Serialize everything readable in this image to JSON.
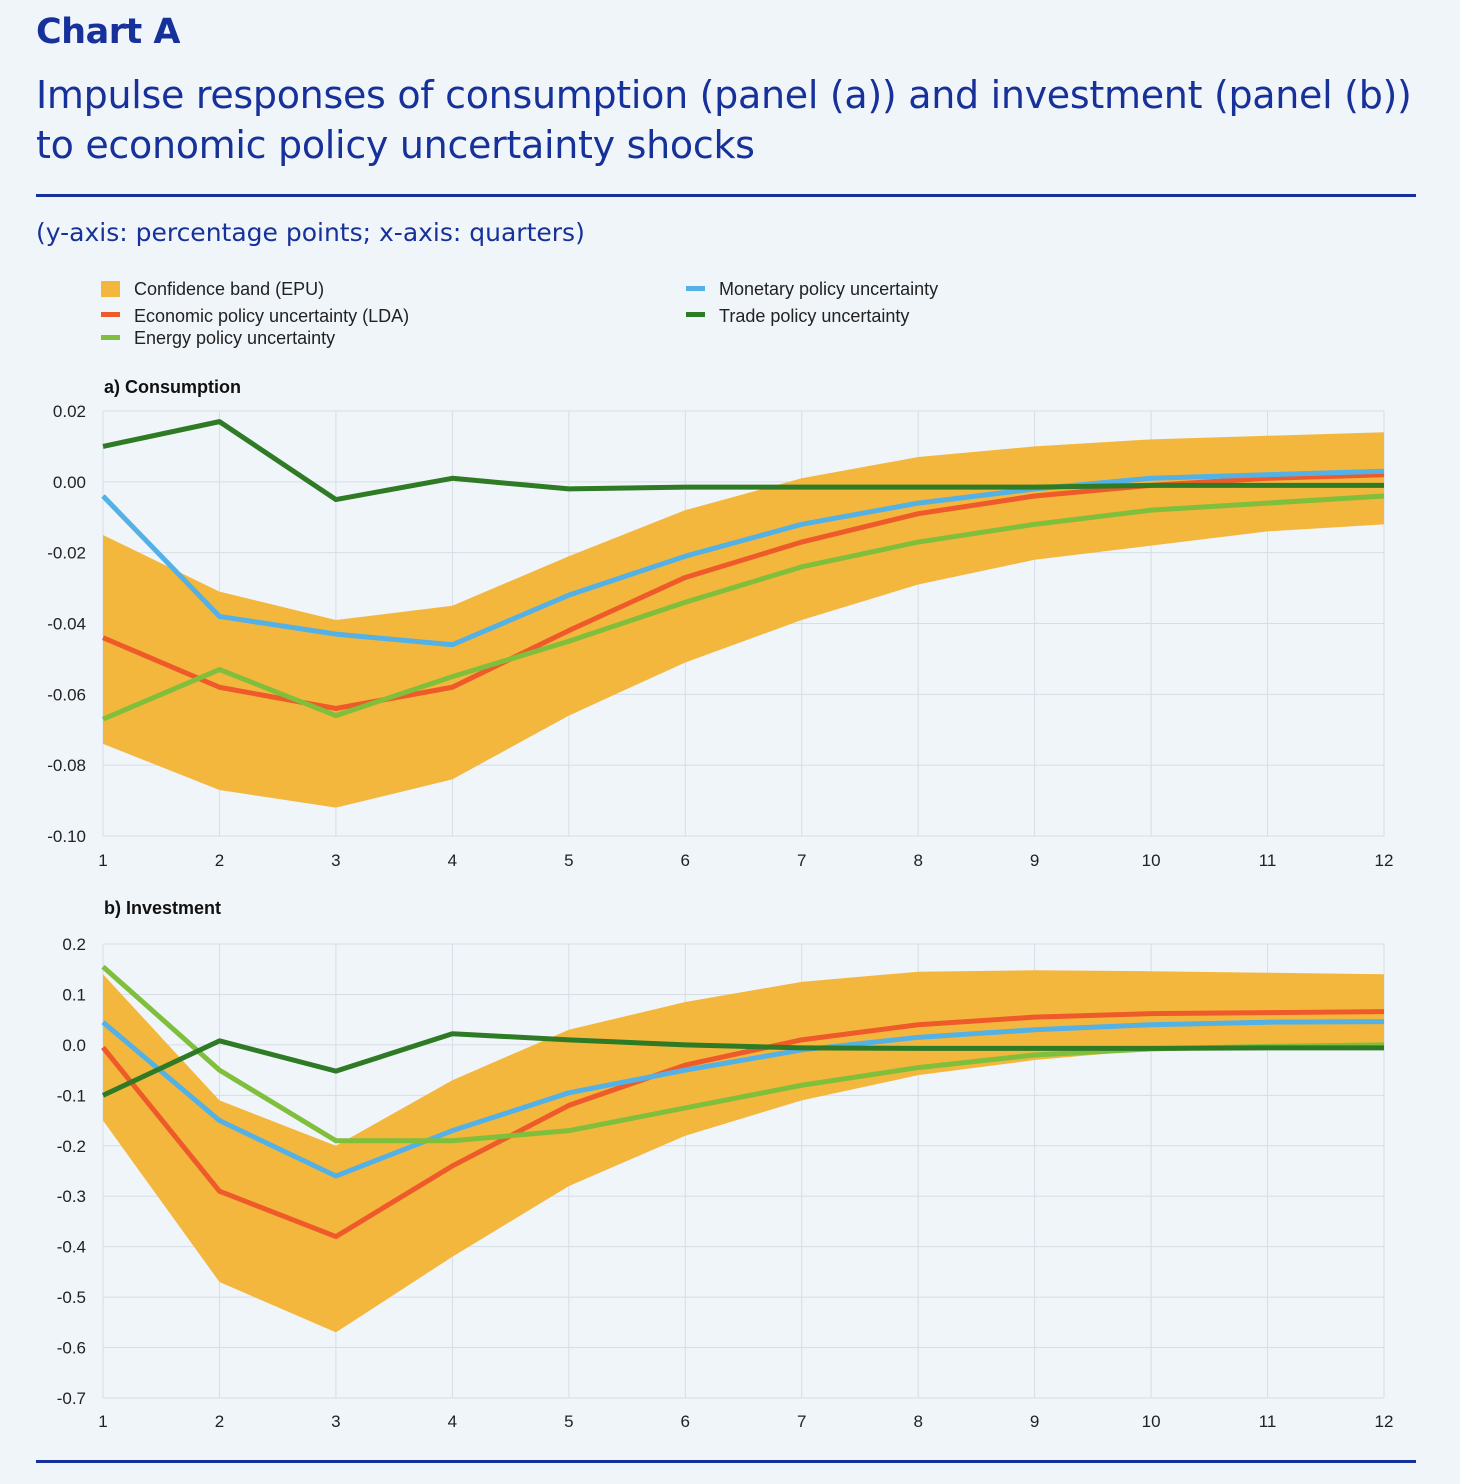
{
  "header": {
    "chart_label": "Chart A",
    "title_line1": "Impulse responses of consumption (panel (a)) and investment (panel (b))",
    "title_line2": "to economic policy uncertainty shocks",
    "axis_note": "(y-axis: percentage points; x-axis: quarters)"
  },
  "colors": {
    "title": "#17319a",
    "band": "#f4b73e",
    "epu": "#ee5a2a",
    "monetary": "#53b1e6",
    "energy": "#7fbf3c",
    "trade": "#2e7a25",
    "grid": "#d6dde6"
  },
  "legend": {
    "band": "Confidence band (EPU)",
    "epu": "Economic policy uncertainty (LDA)",
    "energy": "Energy policy uncertainty",
    "monetary": "Monetary policy uncertainty",
    "trade": "Trade policy uncertainty"
  },
  "chart_data": [
    {
      "type": "line",
      "panel_title": "a) Consumption",
      "x": [
        1,
        2,
        3,
        4,
        5,
        6,
        7,
        8,
        9,
        10,
        11,
        12
      ],
      "xlabel": "quarters",
      "ylabel": "percentage points",
      "ylim": [
        -0.1,
        0.02
      ],
      "yticks": [
        0.02,
        0.0,
        -0.02,
        -0.04,
        -0.06,
        -0.08,
        -0.1
      ],
      "ytick_labels": [
        "0.02",
        "0.00",
        "-0.02",
        "-0.04",
        "-0.06",
        "-0.08",
        "-0.10"
      ],
      "band": {
        "name": "Confidence band (EPU)",
        "upper": [
          -0.015,
          -0.031,
          -0.039,
          -0.035,
          -0.021,
          -0.008,
          0.001,
          0.007,
          0.01,
          0.012,
          0.013,
          0.014
        ],
        "lower": [
          -0.074,
          -0.087,
          -0.092,
          -0.084,
          -0.066,
          -0.051,
          -0.039,
          -0.029,
          -0.022,
          -0.018,
          -0.014,
          -0.012
        ]
      },
      "series": [
        {
          "key": "epu",
          "name": "Economic policy uncertainty (LDA)",
          "values": [
            -0.044,
            -0.058,
            -0.064,
            -0.058,
            -0.042,
            -0.027,
            -0.017,
            -0.009,
            -0.004,
            -0.001,
            0.001,
            0.002
          ]
        },
        {
          "key": "monetary",
          "name": "Monetary policy uncertainty",
          "values": [
            -0.004,
            -0.038,
            -0.043,
            -0.046,
            -0.032,
            -0.021,
            -0.012,
            -0.006,
            -0.002,
            0.001,
            0.002,
            0.003
          ]
        },
        {
          "key": "energy",
          "name": "Energy policy uncertainty",
          "values": [
            -0.067,
            -0.053,
            -0.066,
            -0.055,
            -0.045,
            -0.034,
            -0.024,
            -0.017,
            -0.012,
            -0.008,
            -0.006,
            -0.004
          ]
        },
        {
          "key": "trade",
          "name": "Trade policy uncertainty",
          "values": [
            0.01,
            0.017,
            -0.005,
            0.001,
            -0.002,
            -0.0015,
            -0.0015,
            -0.0015,
            -0.0015,
            -0.001,
            -0.001,
            -0.001
          ]
        }
      ]
    },
    {
      "type": "line",
      "panel_title": "b) Investment",
      "x": [
        1,
        2,
        3,
        4,
        5,
        6,
        7,
        8,
        9,
        10,
        11,
        12
      ],
      "xlabel": "quarters",
      "ylabel": "percentage points",
      "ylim": [
        -0.7,
        0.2
      ],
      "yticks": [
        0.2,
        0.1,
        0.0,
        -0.1,
        -0.2,
        -0.3,
        -0.4,
        -0.5,
        -0.6,
        -0.7
      ],
      "ytick_labels": [
        "0.2",
        "0.1",
        "0.0",
        "-0.1",
        "-0.2",
        "-0.3",
        "-0.4",
        "-0.5",
        "-0.6",
        "-0.7"
      ],
      "band": {
        "name": "Confidence band (EPU)",
        "upper": [
          0.14,
          -0.11,
          -0.2,
          -0.07,
          0.03,
          0.085,
          0.125,
          0.145,
          0.148,
          0.146,
          0.143,
          0.14
        ],
        "lower": [
          -0.15,
          -0.47,
          -0.57,
          -0.42,
          -0.28,
          -0.18,
          -0.11,
          -0.06,
          -0.03,
          -0.01,
          -0.003,
          0.0
        ]
      },
      "series": [
        {
          "key": "epu",
          "name": "Economic policy uncertainty (LDA)",
          "values": [
            -0.005,
            -0.29,
            -0.38,
            -0.24,
            -0.12,
            -0.04,
            0.01,
            0.04,
            0.055,
            0.062,
            0.064,
            0.066
          ]
        },
        {
          "key": "monetary",
          "name": "Monetary policy uncertainty",
          "values": [
            0.045,
            -0.15,
            -0.26,
            -0.17,
            -0.095,
            -0.05,
            -0.01,
            0.015,
            0.03,
            0.04,
            0.045,
            0.046
          ]
        },
        {
          "key": "energy",
          "name": "Energy policy uncertainty",
          "values": [
            0.155,
            -0.05,
            -0.19,
            -0.19,
            -0.17,
            -0.125,
            -0.08,
            -0.045,
            -0.02,
            -0.008,
            -0.003,
            0.0
          ]
        },
        {
          "key": "trade",
          "name": "Trade policy uncertainty",
          "values": [
            -0.1,
            0.008,
            -0.052,
            0.022,
            0.01,
            0.0,
            -0.006,
            -0.007,
            -0.007,
            -0.007,
            -0.006,
            -0.006
          ]
        }
      ]
    }
  ]
}
